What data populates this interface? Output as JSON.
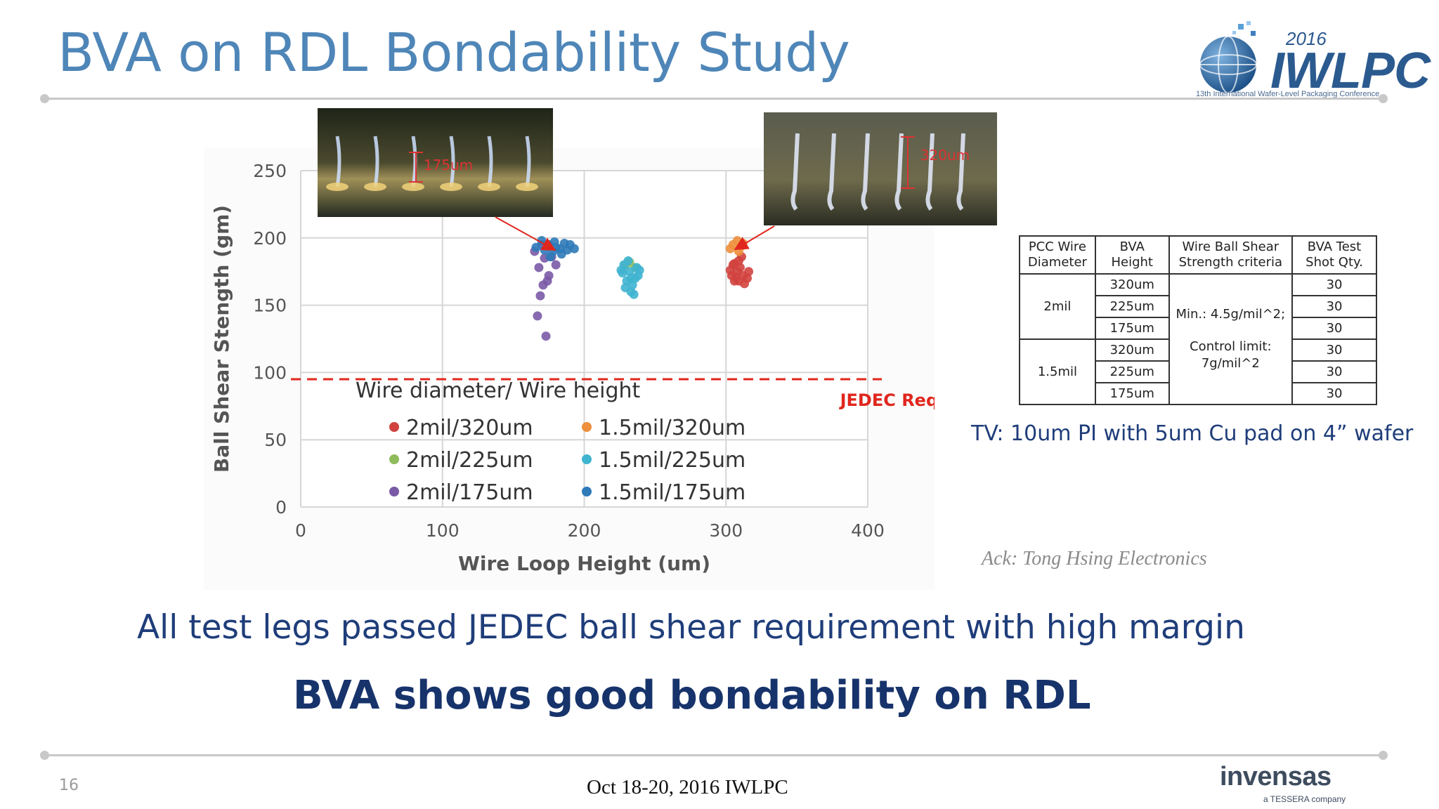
{
  "slide": {
    "title": "BVA on RDL Bondability Study",
    "page_number": "16",
    "footer_event": "Oct 18-20, 2016 IWLPC"
  },
  "logos": {
    "conference": {
      "year": "2016",
      "name": "IWLPC",
      "subtitle": "13th International Wafer-Level Packaging Conference"
    },
    "company": {
      "name": "invensas",
      "subtitle": "a TESSERA company"
    }
  },
  "photos": {
    "left": {
      "annotation": "175um"
    },
    "right": {
      "annotation": "320um"
    }
  },
  "colors": {
    "title": "#4f86b8",
    "jedec_line": "#e0261d",
    "dark_blue_text": "#1f3d7a",
    "series_2mil_320": "#d1433e",
    "series_2mil_225": "#8fbc5a",
    "series_2mil_175": "#7a5aa6",
    "series_15mil_320": "#ee8f3c",
    "series_15mil_225": "#3fb4d0",
    "series_15mil_175": "#2f7ab8"
  },
  "chart_data": {
    "type": "scatter",
    "title": "",
    "xlabel": "Wire Loop Height (um)",
    "ylabel": "Ball Shear Stength (gm)",
    "xlim": [
      0,
      400
    ],
    "ylim": [
      0,
      250
    ],
    "xticks": [
      0,
      100,
      200,
      300,
      400
    ],
    "yticks": [
      0,
      50,
      100,
      150,
      200,
      250
    ],
    "grid": true,
    "legend_title": "Wire diameter/ Wire height",
    "legend_placement": "bottom-center",
    "reference_line": {
      "y": 95,
      "label": "JEDEC Requirement"
    },
    "series": [
      {
        "name": "2mil/320um",
        "color": "#d1433e",
        "points": [
          [
            305,
            180
          ],
          [
            308,
            175
          ],
          [
            312,
            172
          ],
          [
            306,
            168
          ],
          [
            310,
            178
          ],
          [
            315,
            170
          ],
          [
            303,
            176
          ],
          [
            309,
            183
          ],
          [
            313,
            166
          ],
          [
            307,
            171
          ],
          [
            311,
            186
          ],
          [
            304,
            172
          ],
          [
            316,
            175
          ],
          [
            309,
            168
          ],
          [
            306,
            181
          ]
        ]
      },
      {
        "name": "1.5mil/320um",
        "color": "#ee8f3c",
        "points": [
          [
            305,
            195
          ],
          [
            308,
            198
          ],
          [
            311,
            194
          ],
          [
            303,
            192
          ],
          [
            309,
            190
          ],
          [
            312,
            196
          ]
        ]
      },
      {
        "name": "2mil/225um",
        "color": "#8fbc5a",
        "points": [
          [
            232,
            182
          ],
          [
            236,
            178
          ],
          [
            229,
            180
          ]
        ]
      },
      {
        "name": "1.5mil/225um",
        "color": "#3fb4d0",
        "points": [
          [
            228,
            180
          ],
          [
            232,
            175
          ],
          [
            236,
            170
          ],
          [
            230,
            168
          ],
          [
            234,
            165
          ],
          [
            238,
            172
          ],
          [
            226,
            176
          ],
          [
            233,
            160
          ],
          [
            231,
            183
          ],
          [
            237,
            178
          ],
          [
            229,
            163
          ],
          [
            235,
            158
          ],
          [
            227,
            174
          ],
          [
            239,
            176
          ],
          [
            233,
            170
          ]
        ]
      },
      {
        "name": "2mil/175um",
        "color": "#7a5aa6",
        "points": [
          [
            170,
            195
          ],
          [
            172,
            185
          ],
          [
            168,
            178
          ],
          [
            175,
            172
          ],
          [
            171,
            165
          ],
          [
            169,
            157
          ],
          [
            167,
            142
          ],
          [
            173,
            127
          ],
          [
            165,
            190
          ],
          [
            177,
            186
          ],
          [
            180,
            180
          ],
          [
            174,
            168
          ]
        ]
      },
      {
        "name": "1.5mil/175um",
        "color": "#2f7ab8",
        "points": [
          [
            170,
            198
          ],
          [
            175,
            195
          ],
          [
            180,
            193
          ],
          [
            178,
            190
          ],
          [
            183,
            192
          ],
          [
            186,
            196
          ],
          [
            172,
            191
          ],
          [
            188,
            191
          ],
          [
            190,
            195
          ],
          [
            176,
            186
          ],
          [
            184,
            188
          ],
          [
            193,
            192
          ],
          [
            166,
            193
          ],
          [
            179,
            197
          ]
        ]
      }
    ]
  },
  "table": {
    "headers": [
      "PCC Wire Diameter",
      "BVA Height",
      "Wire Ball Shear Strength criteria",
      "BVA Test Shot Qty."
    ],
    "groups": [
      {
        "diameter": "2mil",
        "rows": [
          {
            "height": "320um",
            "qty": "30"
          },
          {
            "height": "225um",
            "qty": "30"
          },
          {
            "height": "175um",
            "qty": "30"
          }
        ]
      },
      {
        "diameter": "1.5mil",
        "rows": [
          {
            "height": "320um",
            "qty": "30"
          },
          {
            "height": "225um",
            "qty": "30"
          },
          {
            "height": "175um",
            "qty": "30"
          }
        ]
      }
    ],
    "criteria_min": "Min.: 4.5g/mil^2;",
    "criteria_control": "Control limit: 7g/mil^2"
  },
  "tv_note": "TV: 10um PI with 5um Cu pad on 4” wafer",
  "ack": "Ack: Tong Hsing Electronics",
  "conclusions": {
    "line1": "All test legs passed JEDEC ball shear requirement with high margin",
    "line2": "BVA shows good bondability on RDL"
  }
}
